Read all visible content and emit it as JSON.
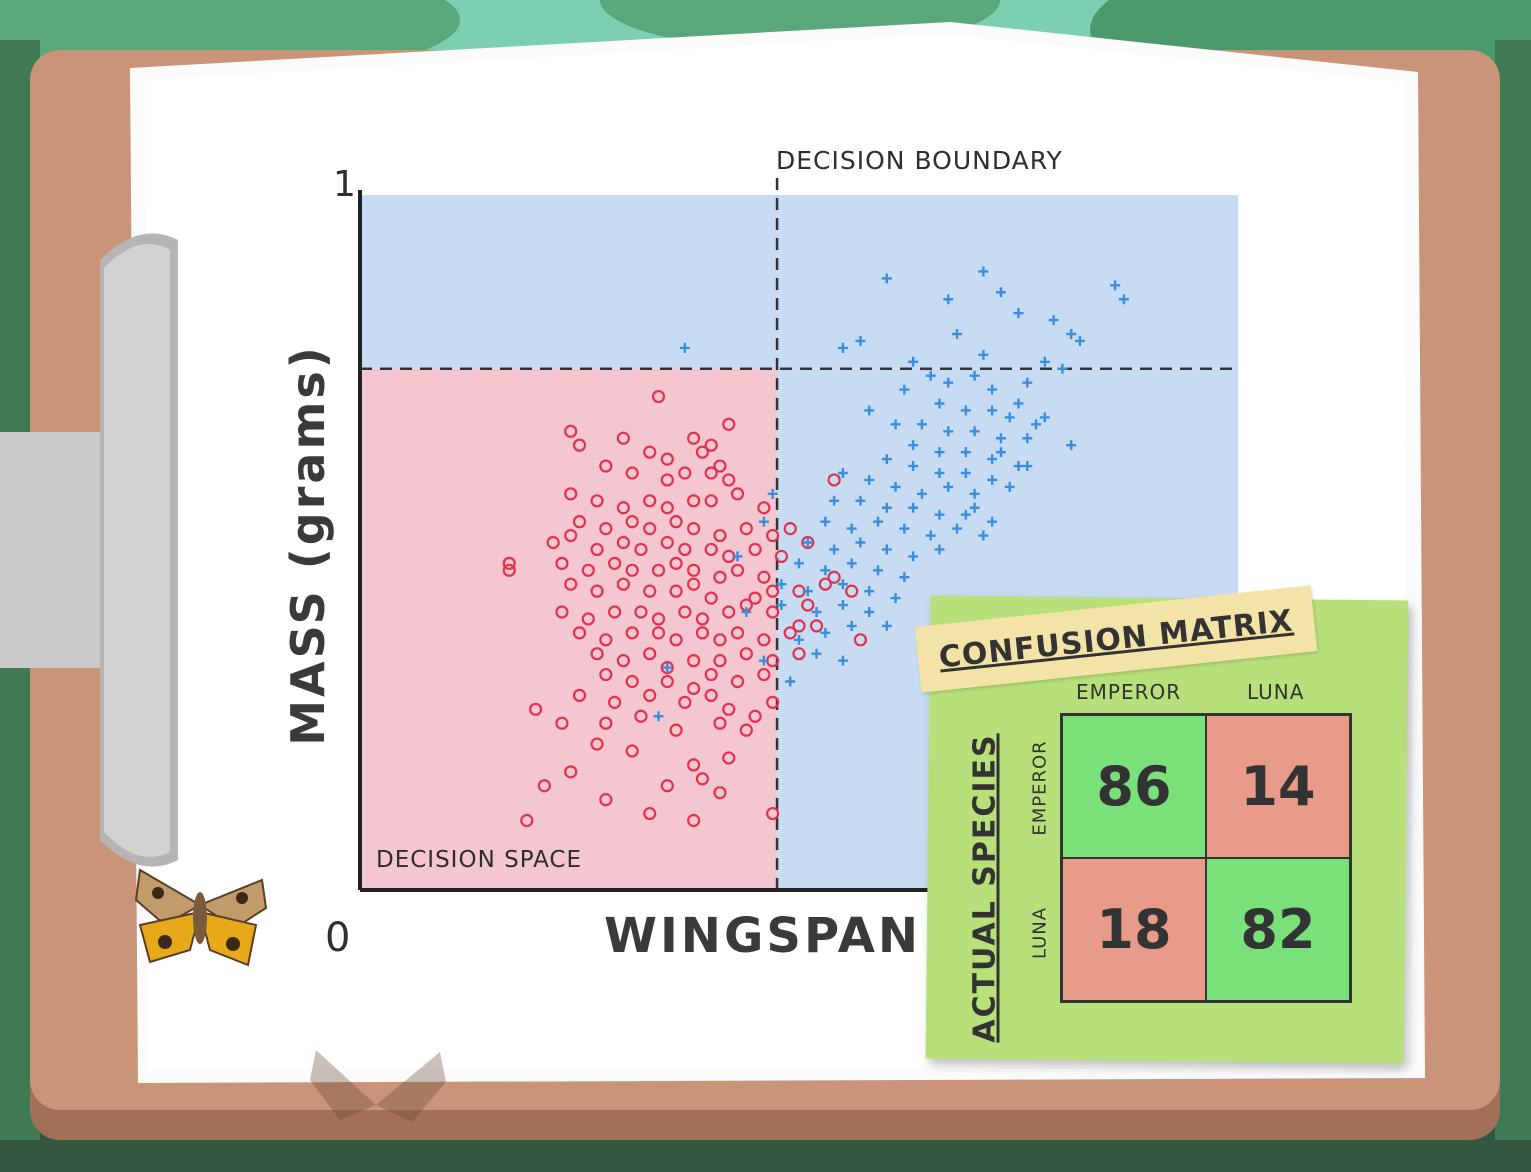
{
  "colors": {
    "emperor": "#e0334f",
    "luna": "#3a8ee0",
    "emperor_region": "#f3c6d0",
    "luna_region": "#c7dcf2",
    "correct_cell": "#7ae07a",
    "incorrect_cell": "#e89b88",
    "sticky_note": "#b7e07a"
  },
  "chart_data": {
    "type": "scatter",
    "xlabel": "WINGSPAN (m",
    "ylabel": "MASS (grams)",
    "x_tick_labels": [
      "0"
    ],
    "y_tick_labels": [
      "1"
    ],
    "annotations": {
      "boundary": "DECISION BOUNDARY",
      "space": "DECISION SPACE"
    },
    "xlim": [
      0,
      1
    ],
    "ylim": [
      0,
      1
    ],
    "boundary_x": 0.475,
    "boundary_y": 0.75,
    "series": [
      {
        "marker": "circle",
        "points": [
          [
            0.34,
            0.71
          ],
          [
            0.24,
            0.66
          ],
          [
            0.25,
            0.64
          ],
          [
            0.3,
            0.65
          ],
          [
            0.33,
            0.63
          ],
          [
            0.35,
            0.62
          ],
          [
            0.38,
            0.65
          ],
          [
            0.39,
            0.63
          ],
          [
            0.42,
            0.67
          ],
          [
            0.4,
            0.64
          ],
          [
            0.41,
            0.61
          ],
          [
            0.28,
            0.61
          ],
          [
            0.31,
            0.6
          ],
          [
            0.35,
            0.59
          ],
          [
            0.37,
            0.6
          ],
          [
            0.4,
            0.6
          ],
          [
            0.42,
            0.59
          ],
          [
            0.24,
            0.57
          ],
          [
            0.27,
            0.56
          ],
          [
            0.3,
            0.55
          ],
          [
            0.33,
            0.56
          ],
          [
            0.35,
            0.55
          ],
          [
            0.38,
            0.56
          ],
          [
            0.4,
            0.56
          ],
          [
            0.43,
            0.57
          ],
          [
            0.46,
            0.55
          ],
          [
            0.25,
            0.53
          ],
          [
            0.28,
            0.52
          ],
          [
            0.31,
            0.53
          ],
          [
            0.33,
            0.52
          ],
          [
            0.36,
            0.53
          ],
          [
            0.38,
            0.52
          ],
          [
            0.41,
            0.51
          ],
          [
            0.44,
            0.52
          ],
          [
            0.47,
            0.51
          ],
          [
            0.49,
            0.52
          ],
          [
            0.22,
            0.5
          ],
          [
            0.24,
            0.51
          ],
          [
            0.27,
            0.49
          ],
          [
            0.3,
            0.5
          ],
          [
            0.32,
            0.49
          ],
          [
            0.35,
            0.5
          ],
          [
            0.37,
            0.49
          ],
          [
            0.4,
            0.49
          ],
          [
            0.42,
            0.48
          ],
          [
            0.45,
            0.49
          ],
          [
            0.48,
            0.48
          ],
          [
            0.17,
            0.47
          ],
          [
            0.17,
            0.46
          ],
          [
            0.23,
            0.47
          ],
          [
            0.26,
            0.46
          ],
          [
            0.29,
            0.47
          ],
          [
            0.31,
            0.46
          ],
          [
            0.34,
            0.46
          ],
          [
            0.36,
            0.47
          ],
          [
            0.38,
            0.46
          ],
          [
            0.41,
            0.45
          ],
          [
            0.43,
            0.46
          ],
          [
            0.46,
            0.45
          ],
          [
            0.24,
            0.44
          ],
          [
            0.27,
            0.43
          ],
          [
            0.3,
            0.44
          ],
          [
            0.33,
            0.43
          ],
          [
            0.36,
            0.43
          ],
          [
            0.38,
            0.44
          ],
          [
            0.4,
            0.42
          ],
          [
            0.45,
            0.42
          ],
          [
            0.47,
            0.43
          ],
          [
            0.5,
            0.43
          ],
          [
            0.53,
            0.44
          ],
          [
            0.56,
            0.43
          ],
          [
            0.23,
            0.4
          ],
          [
            0.26,
            0.39
          ],
          [
            0.29,
            0.4
          ],
          [
            0.32,
            0.4
          ],
          [
            0.34,
            0.39
          ],
          [
            0.37,
            0.4
          ],
          [
            0.39,
            0.39
          ],
          [
            0.42,
            0.4
          ],
          [
            0.44,
            0.41
          ],
          [
            0.47,
            0.4
          ],
          [
            0.51,
            0.41
          ],
          [
            0.52,
            0.38
          ],
          [
            0.25,
            0.37
          ],
          [
            0.28,
            0.36
          ],
          [
            0.31,
            0.37
          ],
          [
            0.34,
            0.37
          ],
          [
            0.36,
            0.36
          ],
          [
            0.39,
            0.37
          ],
          [
            0.41,
            0.36
          ],
          [
            0.43,
            0.37
          ],
          [
            0.46,
            0.36
          ],
          [
            0.49,
            0.37
          ],
          [
            0.27,
            0.34
          ],
          [
            0.3,
            0.33
          ],
          [
            0.33,
            0.34
          ],
          [
            0.35,
            0.32
          ],
          [
            0.38,
            0.33
          ],
          [
            0.41,
            0.33
          ],
          [
            0.44,
            0.34
          ],
          [
            0.47,
            0.33
          ],
          [
            0.5,
            0.34
          ],
          [
            0.57,
            0.36
          ],
          [
            0.28,
            0.31
          ],
          [
            0.31,
            0.3
          ],
          [
            0.35,
            0.3
          ],
          [
            0.38,
            0.29
          ],
          [
            0.4,
            0.31
          ],
          [
            0.43,
            0.3
          ],
          [
            0.46,
            0.31
          ],
          [
            0.25,
            0.28
          ],
          [
            0.29,
            0.27
          ],
          [
            0.33,
            0.28
          ],
          [
            0.37,
            0.27
          ],
          [
            0.4,
            0.28
          ],
          [
            0.42,
            0.26
          ],
          [
            0.47,
            0.27
          ],
          [
            0.2,
            0.26
          ],
          [
            0.23,
            0.24
          ],
          [
            0.28,
            0.24
          ],
          [
            0.32,
            0.25
          ],
          [
            0.36,
            0.23
          ],
          [
            0.41,
            0.24
          ],
          [
            0.45,
            0.25
          ],
          [
            0.27,
            0.21
          ],
          [
            0.31,
            0.2
          ],
          [
            0.38,
            0.18
          ],
          [
            0.42,
            0.19
          ],
          [
            0.24,
            0.17
          ],
          [
            0.35,
            0.15
          ],
          [
            0.39,
            0.16
          ],
          [
            0.41,
            0.14
          ],
          [
            0.28,
            0.13
          ],
          [
            0.33,
            0.11
          ],
          [
            0.21,
            0.15
          ],
          [
            0.44,
            0.23
          ],
          [
            0.19,
            0.1
          ],
          [
            0.38,
            0.1
          ],
          [
            0.47,
            0.11
          ],
          [
            0.54,
            0.59
          ],
          [
            0.51,
            0.5
          ],
          [
            0.54,
            0.45
          ],
          [
            0.5,
            0.38
          ]
        ]
      },
      {
        "marker": "plus",
        "points": [
          [
            0.37,
            0.78
          ],
          [
            0.55,
            0.78
          ],
          [
            0.57,
            0.79
          ],
          [
            0.6,
            0.88
          ],
          [
            0.67,
            0.85
          ],
          [
            0.71,
            0.89
          ],
          [
            0.73,
            0.86
          ],
          [
            0.75,
            0.83
          ],
          [
            0.79,
            0.82
          ],
          [
            0.81,
            0.8
          ],
          [
            0.86,
            0.87
          ],
          [
            0.87,
            0.85
          ],
          [
            0.68,
            0.8
          ],
          [
            0.63,
            0.76
          ],
          [
            0.65,
            0.74
          ],
          [
            0.62,
            0.72
          ],
          [
            0.67,
            0.73
          ],
          [
            0.7,
            0.74
          ],
          [
            0.72,
            0.72
          ],
          [
            0.76,
            0.73
          ],
          [
            0.66,
            0.7
          ],
          [
            0.69,
            0.69
          ],
          [
            0.72,
            0.69
          ],
          [
            0.75,
            0.7
          ],
          [
            0.77,
            0.67
          ],
          [
            0.64,
            0.67
          ],
          [
            0.67,
            0.66
          ],
          [
            0.7,
            0.66
          ],
          [
            0.73,
            0.65
          ],
          [
            0.76,
            0.65
          ],
          [
            0.63,
            0.64
          ],
          [
            0.66,
            0.63
          ],
          [
            0.69,
            0.63
          ],
          [
            0.72,
            0.62
          ],
          [
            0.75,
            0.61
          ],
          [
            0.6,
            0.62
          ],
          [
            0.63,
            0.61
          ],
          [
            0.66,
            0.6
          ],
          [
            0.69,
            0.6
          ],
          [
            0.72,
            0.59
          ],
          [
            0.55,
            0.6
          ],
          [
            0.58,
            0.59
          ],
          [
            0.61,
            0.58
          ],
          [
            0.64,
            0.57
          ],
          [
            0.67,
            0.58
          ],
          [
            0.7,
            0.57
          ],
          [
            0.74,
            0.58
          ],
          [
            0.54,
            0.56
          ],
          [
            0.57,
            0.56
          ],
          [
            0.6,
            0.55
          ],
          [
            0.63,
            0.55
          ],
          [
            0.66,
            0.54
          ],
          [
            0.69,
            0.54
          ],
          [
            0.53,
            0.53
          ],
          [
            0.56,
            0.52
          ],
          [
            0.59,
            0.53
          ],
          [
            0.62,
            0.52
          ],
          [
            0.65,
            0.51
          ],
          [
            0.68,
            0.52
          ],
          [
            0.71,
            0.51
          ],
          [
            0.51,
            0.5
          ],
          [
            0.54,
            0.49
          ],
          [
            0.57,
            0.5
          ],
          [
            0.6,
            0.49
          ],
          [
            0.63,
            0.48
          ],
          [
            0.66,
            0.49
          ],
          [
            0.5,
            0.47
          ],
          [
            0.53,
            0.46
          ],
          [
            0.56,
            0.47
          ],
          [
            0.59,
            0.46
          ],
          [
            0.62,
            0.45
          ],
          [
            0.48,
            0.44
          ],
          [
            0.51,
            0.43
          ],
          [
            0.55,
            0.44
          ],
          [
            0.58,
            0.43
          ],
          [
            0.61,
            0.42
          ],
          [
            0.52,
            0.4
          ],
          [
            0.55,
            0.41
          ],
          [
            0.58,
            0.4
          ],
          [
            0.6,
            0.38
          ],
          [
            0.5,
            0.36
          ],
          [
            0.53,
            0.37
          ],
          [
            0.56,
            0.38
          ],
          [
            0.46,
            0.33
          ],
          [
            0.52,
            0.34
          ],
          [
            0.55,
            0.33
          ],
          [
            0.49,
            0.3
          ],
          [
            0.34,
            0.25
          ],
          [
            0.35,
            0.32
          ],
          [
            0.71,
            0.77
          ],
          [
            0.78,
            0.76
          ],
          [
            0.8,
            0.75
          ],
          [
            0.82,
            0.79
          ],
          [
            0.74,
            0.68
          ],
          [
            0.78,
            0.68
          ],
          [
            0.73,
            0.63
          ],
          [
            0.76,
            0.61
          ],
          [
            0.81,
            0.64
          ],
          [
            0.58,
            0.69
          ],
          [
            0.61,
            0.67
          ],
          [
            0.44,
            0.4
          ],
          [
            0.43,
            0.48
          ],
          [
            0.46,
            0.53
          ],
          [
            0.48,
            0.41
          ],
          [
            0.47,
            0.57
          ],
          [
            0.7,
            0.55
          ],
          [
            0.72,
            0.53
          ]
        ]
      }
    ]
  },
  "confusion_matrix": {
    "title": "CONFUSION MATRIX",
    "row_axis_title": "ACTUAL SPECIES",
    "columns": [
      "EMPEROR",
      "LUNA"
    ],
    "rows": [
      "EMPEROR",
      "LUNA"
    ],
    "cells": [
      [
        "86",
        "14"
      ],
      [
        "18",
        "82"
      ]
    ]
  }
}
